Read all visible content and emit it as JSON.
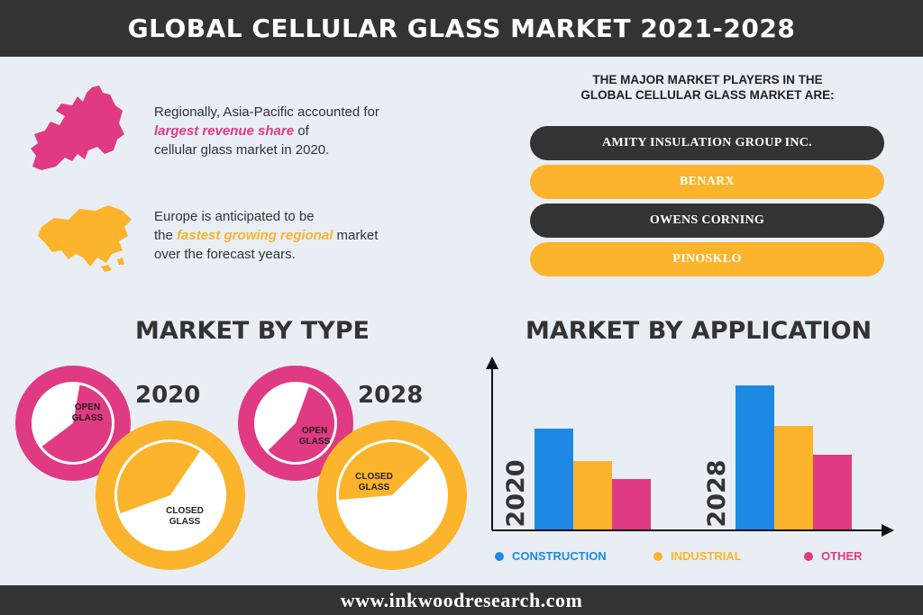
{
  "header": {
    "title": "GLOBAL CELLULAR GLASS MARKET 2021-2028"
  },
  "regional": [
    {
      "icon": "europe-map-icon",
      "line1": "Regionally, Asia-Pacific accounted for",
      "highlight": "largest revenue share",
      "after": " of",
      "line3": "cellular glass market in 2020."
    },
    {
      "icon": "asia-map-icon",
      "line1": "Europe is anticipated to be",
      "before": "the ",
      "highlight": "fastest growing regional",
      "after": " market",
      "line3": "over the forecast years."
    }
  ],
  "players": {
    "title_line1": "THE MAJOR MARKET PLAYERS IN THE",
    "title_line2": "GLOBAL CELLULAR GLASS MARKET ARE:",
    "items": [
      "AMITY INSULATION GROUP INC.",
      "BENARX",
      "OWENS CORNING",
      "PINOSKLO"
    ]
  },
  "colors": {
    "pink": "#e03a82",
    "orange": "#fbb42b",
    "blue": "#1e88e5",
    "dark": "#333333"
  },
  "chart_data": [
    {
      "type": "pie",
      "title": "MARKET BY TYPE",
      "subtitle": "2020",
      "labels": [
        "OPEN GLASS",
        "CLOSED GLASS"
      ],
      "values": [
        0.62,
        0.4
      ]
    },
    {
      "type": "pie",
      "title": "",
      "subtitle": "2028",
      "labels": [
        "OPEN GLASS",
        "CLOSED GLASS"
      ],
      "values": [
        0.57,
        0.39
      ]
    },
    {
      "type": "bar",
      "title": "MARKET BY APPLICATION",
      "categories": [
        "2020",
        "2028"
      ],
      "series": [
        {
          "name": "CONSTRUCTION",
          "values": [
            112,
            160
          ]
        },
        {
          "name": "INDUSTRIAL",
          "values": [
            76,
            115
          ]
        },
        {
          "name": "OTHER",
          "values": [
            56,
            83
          ]
        }
      ],
      "ylim": [
        0,
        175
      ]
    }
  ],
  "footer": {
    "url": "www.inkwoodresearch.com"
  }
}
